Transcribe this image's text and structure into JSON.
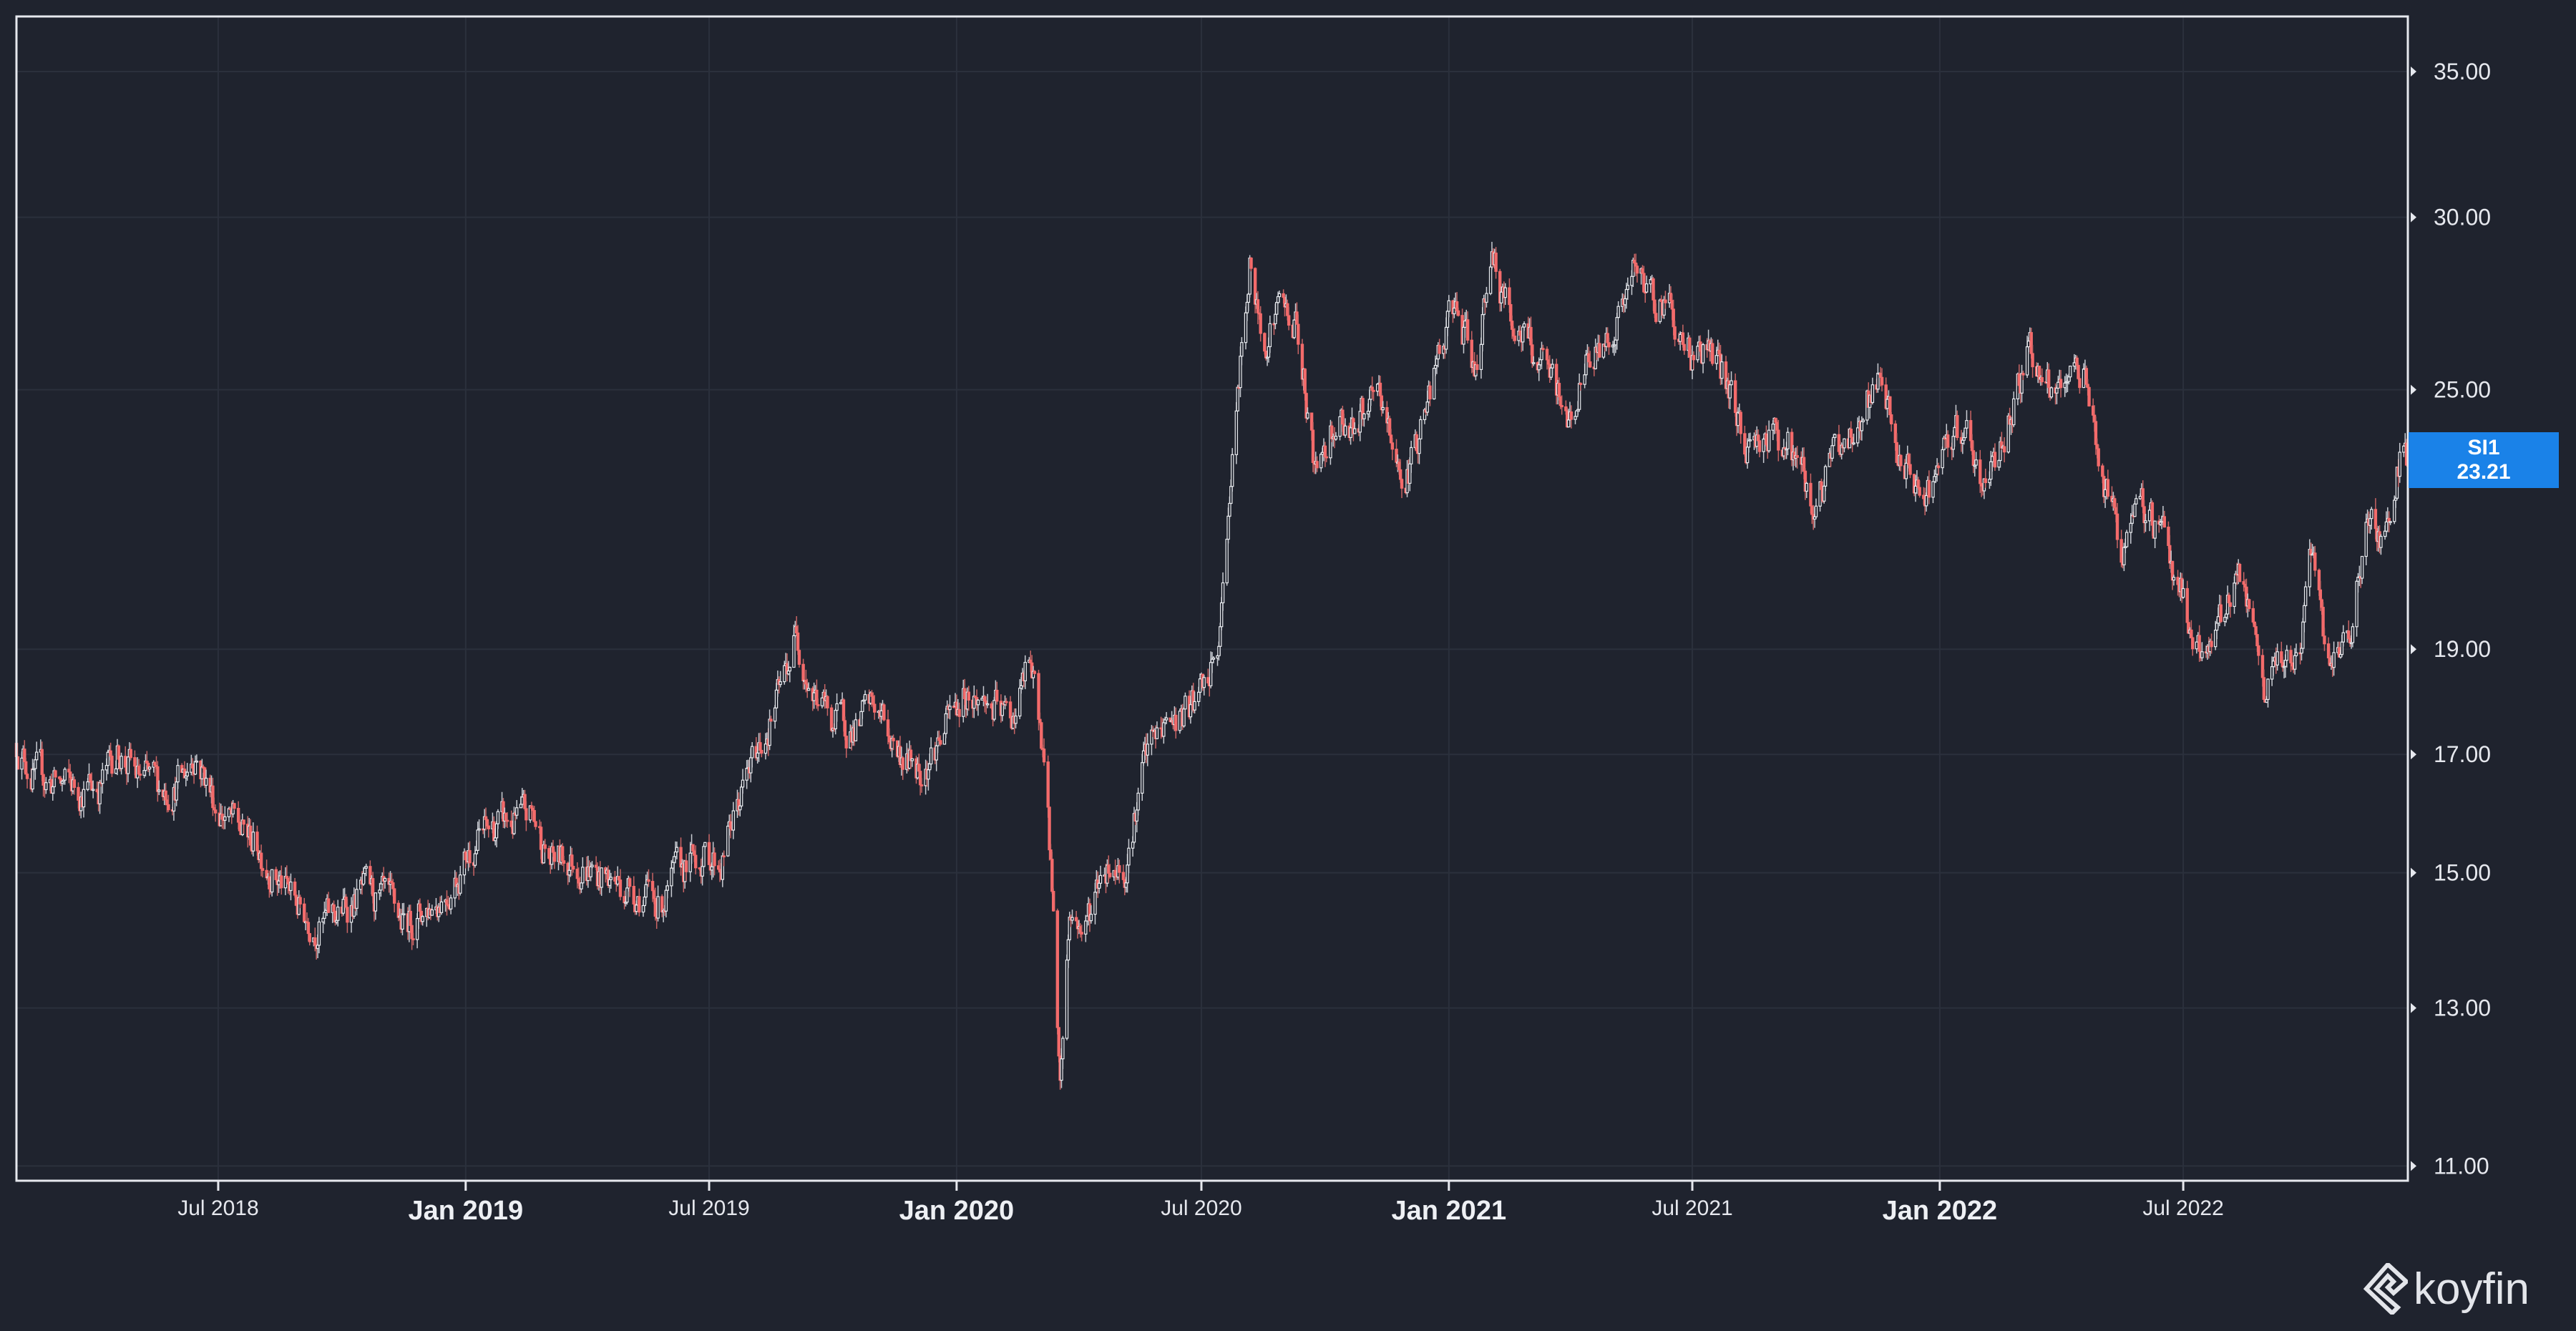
{
  "chart_data": {
    "type": "candlestick",
    "title": "",
    "ticker": "SI1",
    "last_price": "23.21",
    "y_scale": "log",
    "ylim": [
      10.83,
      37.1
    ],
    "xlim": [
      "2018-02-01",
      "2022-12-15"
    ],
    "grid": true,
    "y_ticks": [
      "11.00",
      "13.00",
      "15.00",
      "17.00",
      "19.00",
      "25.00",
      "30.00",
      "35.00"
    ],
    "x_ticks": [
      {
        "date": "2018-07-01",
        "label": "Jul 2018",
        "major": false
      },
      {
        "date": "2019-01-01",
        "label": "Jan 2019",
        "major": true
      },
      {
        "date": "2019-07-01",
        "label": "Jul 2019",
        "major": false
      },
      {
        "date": "2020-01-01",
        "label": "Jan 2020",
        "major": true
      },
      {
        "date": "2020-07-01",
        "label": "Jul 2020",
        "major": false
      },
      {
        "date": "2021-01-01",
        "label": "Jan 2021",
        "major": true
      },
      {
        "date": "2021-07-01",
        "label": "Jul 2021",
        "major": false
      },
      {
        "date": "2022-01-01",
        "label": "Jan 2022",
        "major": true
      },
      {
        "date": "2022-07-01",
        "label": "Jul 2022",
        "major": false
      }
    ],
    "close_anchors": [
      [
        "2018-02-01",
        17.2
      ],
      [
        "2018-02-15",
        16.6
      ],
      [
        "2018-03-01",
        16.5
      ],
      [
        "2018-03-20",
        16.4
      ],
      [
        "2018-04-05",
        16.5
      ],
      [
        "2018-04-18",
        17.1
      ],
      [
        "2018-05-01",
        16.6
      ],
      [
        "2018-05-20",
        16.4
      ],
      [
        "2018-06-05",
        16.6
      ],
      [
        "2018-06-14",
        17.1
      ],
      [
        "2018-06-28",
        16.2
      ],
      [
        "2018-07-15",
        15.7
      ],
      [
        "2018-08-01",
        15.4
      ],
      [
        "2018-08-15",
        14.9
      ],
      [
        "2018-09-01",
        14.4
      ],
      [
        "2018-09-15",
        14.2
      ],
      [
        "2018-10-01",
        14.4
      ],
      [
        "2018-10-15",
        14.7
      ],
      [
        "2018-11-01",
        14.5
      ],
      [
        "2018-11-15",
        14.2
      ],
      [
        "2018-12-01",
        14.4
      ],
      [
        "2018-12-20",
        14.8
      ],
      [
        "2019-01-10",
        15.6
      ],
      [
        "2019-02-01",
        15.8
      ],
      [
        "2019-02-20",
        15.9
      ],
      [
        "2019-03-05",
        15.2
      ],
      [
        "2019-03-25",
        15.2
      ],
      [
        "2019-04-15",
        14.9
      ],
      [
        "2019-05-01",
        14.8
      ],
      [
        "2019-05-25",
        14.5
      ],
      [
        "2019-06-10",
        15.0
      ],
      [
        "2019-06-25",
        15.3
      ],
      [
        "2019-07-10",
        15.2
      ],
      [
        "2019-07-25",
        16.3
      ],
      [
        "2019-08-10",
        17.3
      ],
      [
        "2019-08-25",
        18.3
      ],
      [
        "2019-09-04",
        19.4
      ],
      [
        "2019-09-15",
        18.2
      ],
      [
        "2019-10-01",
        17.6
      ],
      [
        "2019-10-20",
        17.5
      ],
      [
        "2019-11-01",
        17.9
      ],
      [
        "2019-11-20",
        17.0
      ],
      [
        "2019-12-05",
        16.8
      ],
      [
        "2019-12-20",
        17.3
      ],
      [
        "2020-01-08",
        18.2
      ],
      [
        "2020-01-25",
        17.9
      ],
      [
        "2020-02-10",
        17.6
      ],
      [
        "2020-02-24",
        18.7
      ],
      [
        "2020-03-05",
        17.2
      ],
      [
        "2020-03-12",
        14.8
      ],
      [
        "2020-03-18",
        12.0
      ],
      [
        "2020-03-25",
        14.4
      ],
      [
        "2020-04-05",
        14.1
      ],
      [
        "2020-04-20",
        15.2
      ],
      [
        "2020-05-05",
        15.1
      ],
      [
        "2020-05-20",
        16.9
      ],
      [
        "2020-06-05",
        17.6
      ],
      [
        "2020-06-20",
        17.7
      ],
      [
        "2020-07-05",
        18.2
      ],
      [
        "2020-07-15",
        19.2
      ],
      [
        "2020-07-22",
        22.5
      ],
      [
        "2020-08-06",
        28.5
      ],
      [
        "2020-08-15",
        26.3
      ],
      [
        "2020-08-28",
        27.4
      ],
      [
        "2020-09-10",
        26.8
      ],
      [
        "2020-09-24",
        22.8
      ],
      [
        "2020-10-08",
        24.3
      ],
      [
        "2020-10-25",
        24.2
      ],
      [
        "2020-11-10",
        24.6
      ],
      [
        "2020-11-30",
        22.6
      ],
      [
        "2020-12-10",
        23.9
      ],
      [
        "2020-12-28",
        26.2
      ],
      [
        "2021-01-06",
        27.3
      ],
      [
        "2021-01-20",
        25.4
      ],
      [
        "2021-02-01",
        29.0
      ],
      [
        "2021-02-12",
        27.3
      ],
      [
        "2021-02-26",
        26.4
      ],
      [
        "2021-03-15",
        25.3
      ],
      [
        "2021-03-31",
        24.2
      ],
      [
        "2021-04-15",
        25.8
      ],
      [
        "2021-05-01",
        26.5
      ],
      [
        "2021-05-18",
        28.1
      ],
      [
        "2021-06-05",
        27.6
      ],
      [
        "2021-06-15",
        27.4
      ],
      [
        "2021-06-25",
        26.0
      ],
      [
        "2021-07-10",
        26.2
      ],
      [
        "2021-07-25",
        25.3
      ],
      [
        "2021-08-10",
        23.6
      ],
      [
        "2021-08-25",
        23.9
      ],
      [
        "2021-09-10",
        23.6
      ],
      [
        "2021-09-30",
        22.1
      ],
      [
        "2021-10-15",
        23.4
      ],
      [
        "2021-11-01",
        24.1
      ],
      [
        "2021-11-15",
        25.3
      ],
      [
        "2021-11-30",
        23.4
      ],
      [
        "2021-12-15",
        22.3
      ],
      [
        "2022-01-01",
        22.9
      ],
      [
        "2022-01-20",
        24.2
      ],
      [
        "2022-01-31",
        22.4
      ],
      [
        "2022-02-15",
        23.6
      ],
      [
        "2022-03-01",
        25.3
      ],
      [
        "2022-03-08",
        26.3
      ],
      [
        "2022-03-20",
        25.0
      ],
      [
        "2022-04-05",
        24.7
      ],
      [
        "2022-04-18",
        25.9
      ],
      [
        "2022-05-01",
        22.8
      ],
      [
        "2022-05-15",
        21.2
      ],
      [
        "2022-05-31",
        21.9
      ],
      [
        "2022-06-15",
        21.7
      ],
      [
        "2022-07-01",
        20.0
      ],
      [
        "2022-07-15",
        18.6
      ],
      [
        "2022-08-01",
        20.0
      ],
      [
        "2022-08-12",
        20.6
      ],
      [
        "2022-08-31",
        17.9
      ],
      [
        "2022-09-10",
        18.8
      ],
      [
        "2022-09-25",
        18.9
      ],
      [
        "2022-10-04",
        20.8
      ],
      [
        "2022-10-20",
        18.4
      ],
      [
        "2022-11-01",
        19.3
      ],
      [
        "2022-11-14",
        21.6
      ],
      [
        "2022-11-28",
        21.4
      ],
      [
        "2022-12-05",
        22.8
      ],
      [
        "2022-12-12",
        23.8
      ],
      [
        "2022-12-15",
        23.21
      ]
    ],
    "colors": {
      "up": "#e8eaee",
      "down": "#f36b6b",
      "background": "#1f232e",
      "grid": "#2b303c",
      "label": "#1a82e8"
    }
  },
  "last_label": {
    "ticker": "SI1",
    "price": "23.21"
  },
  "brand": {
    "name": "koyfin"
  }
}
